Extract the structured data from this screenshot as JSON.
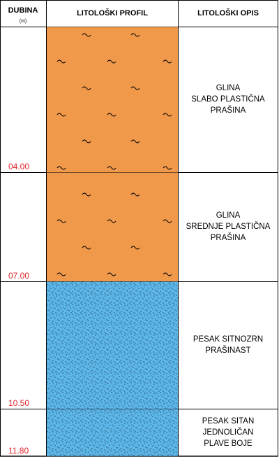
{
  "header": {
    "depth": "DUBINA",
    "unit": "(m)",
    "profile": "LITOLOŠKI PROFIL",
    "description": "LITOLOŠKI OPIS"
  },
  "layers": [
    {
      "depth": "04.00",
      "lines": [
        "GLINA",
        "SLABO PLASTIČNA",
        "PRAŠINA"
      ]
    },
    {
      "depth": "07.00",
      "lines": [
        "GLINA",
        "SREDNJE PLASTIČNA",
        "PRAŠINA"
      ]
    },
    {
      "depth": "10.50",
      "lines": [
        "PESAK SITNOZRN",
        "PRAŠINAST"
      ]
    },
    {
      "depth": "11.80",
      "lines": [
        "PESAK SITAN",
        "JEDNOLIČAN",
        "PLAVE BOJE"
      ]
    }
  ]
}
